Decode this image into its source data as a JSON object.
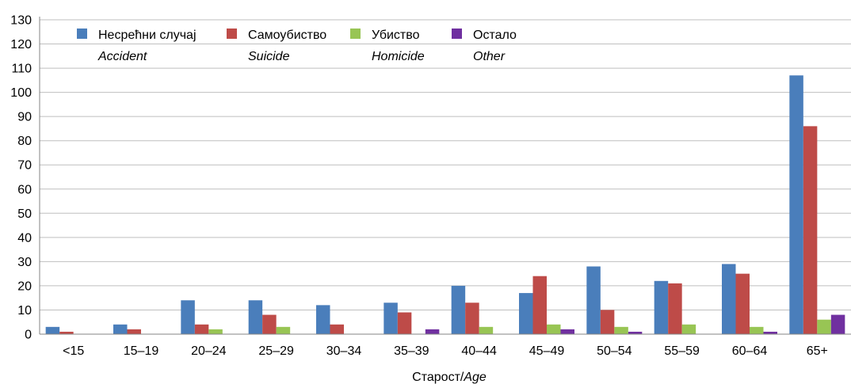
{
  "chart_data": {
    "type": "bar",
    "categories": [
      "<15",
      "15–19",
      "20–24",
      "25–29",
      "30–34",
      "35–39",
      "40–44",
      "45–49",
      "50–54",
      "55–59",
      "60–64",
      "65+"
    ],
    "series": [
      {
        "name": "Несрећни случај",
        "name_en": "Accident",
        "color": "#4a7ebb",
        "values": [
          3,
          4,
          14,
          14,
          12,
          13,
          20,
          17,
          28,
          22,
          29,
          107
        ]
      },
      {
        "name": "Самоубиство",
        "name_en": "Suicide",
        "color": "#be4b48",
        "values": [
          1,
          2,
          4,
          8,
          4,
          9,
          13,
          24,
          10,
          21,
          25,
          86
        ]
      },
      {
        "name": "Убиство",
        "name_en": "Homicide",
        "color": "#98c554",
        "values": [
          0,
          0,
          2,
          3,
          0,
          0,
          3,
          4,
          3,
          4,
          3,
          6
        ]
      },
      {
        "name": "Остало",
        "name_en": "Other",
        "color": "#7030a0",
        "values": [
          0,
          0,
          0,
          0,
          0,
          2,
          0,
          2,
          1,
          0,
          1,
          8
        ]
      }
    ],
    "xlabel_main": "Старост/",
    "xlabel_italic": "Age",
    "ylabel": "",
    "ylim": [
      0,
      130
    ],
    "yticks": [
      0,
      10,
      20,
      30,
      40,
      50,
      60,
      70,
      80,
      90,
      100,
      110,
      120,
      130
    ],
    "grid": true,
    "legend_position": "top-left"
  }
}
